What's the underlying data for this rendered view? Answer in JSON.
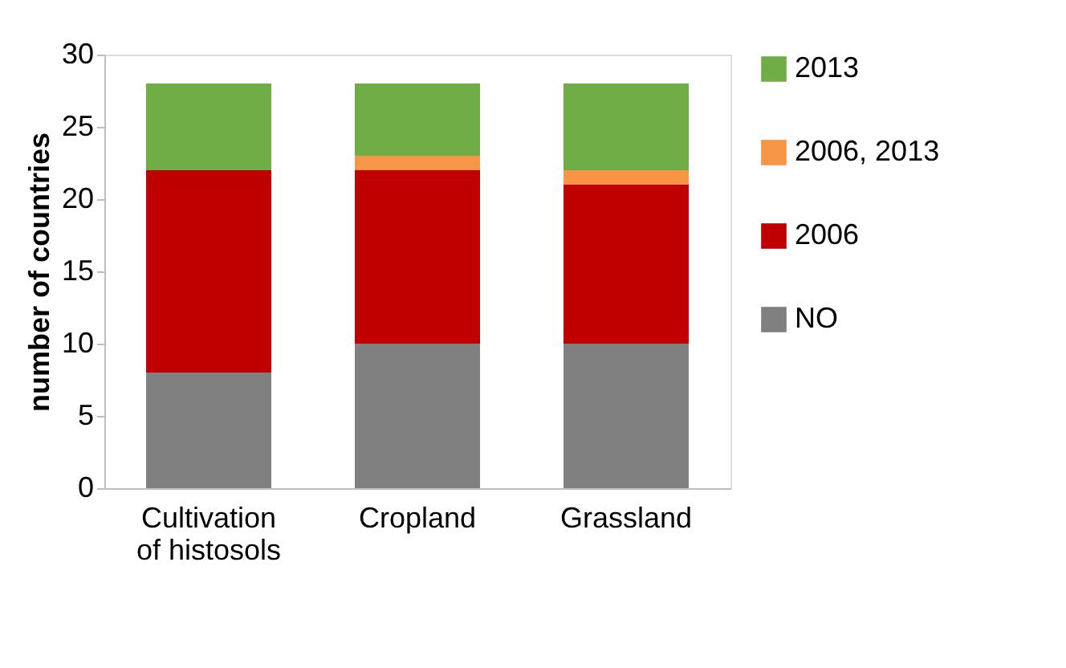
{
  "chart_data": {
    "type": "bar",
    "stacked": true,
    "ylabel": "number of countries",
    "categories": [
      "Cultivation of histosols",
      "Cropland",
      "Grassland"
    ],
    "series": [
      {
        "name": "NO",
        "color": "#808080",
        "values": [
          8,
          10,
          10
        ]
      },
      {
        "name": "2006",
        "color": "#c00000",
        "values": [
          14,
          12,
          11
        ]
      },
      {
        "name": "2006, 2013",
        "color": "#f79646",
        "values": [
          0,
          1,
          1
        ]
      },
      {
        "name": "2013",
        "color": "#70ad47",
        "values": [
          6,
          5,
          6
        ]
      }
    ],
    "ylim": [
      0,
      30
    ],
    "yticks": [
      0,
      5,
      10,
      15,
      20,
      25,
      30
    ],
    "grid": false,
    "legend": "right"
  }
}
